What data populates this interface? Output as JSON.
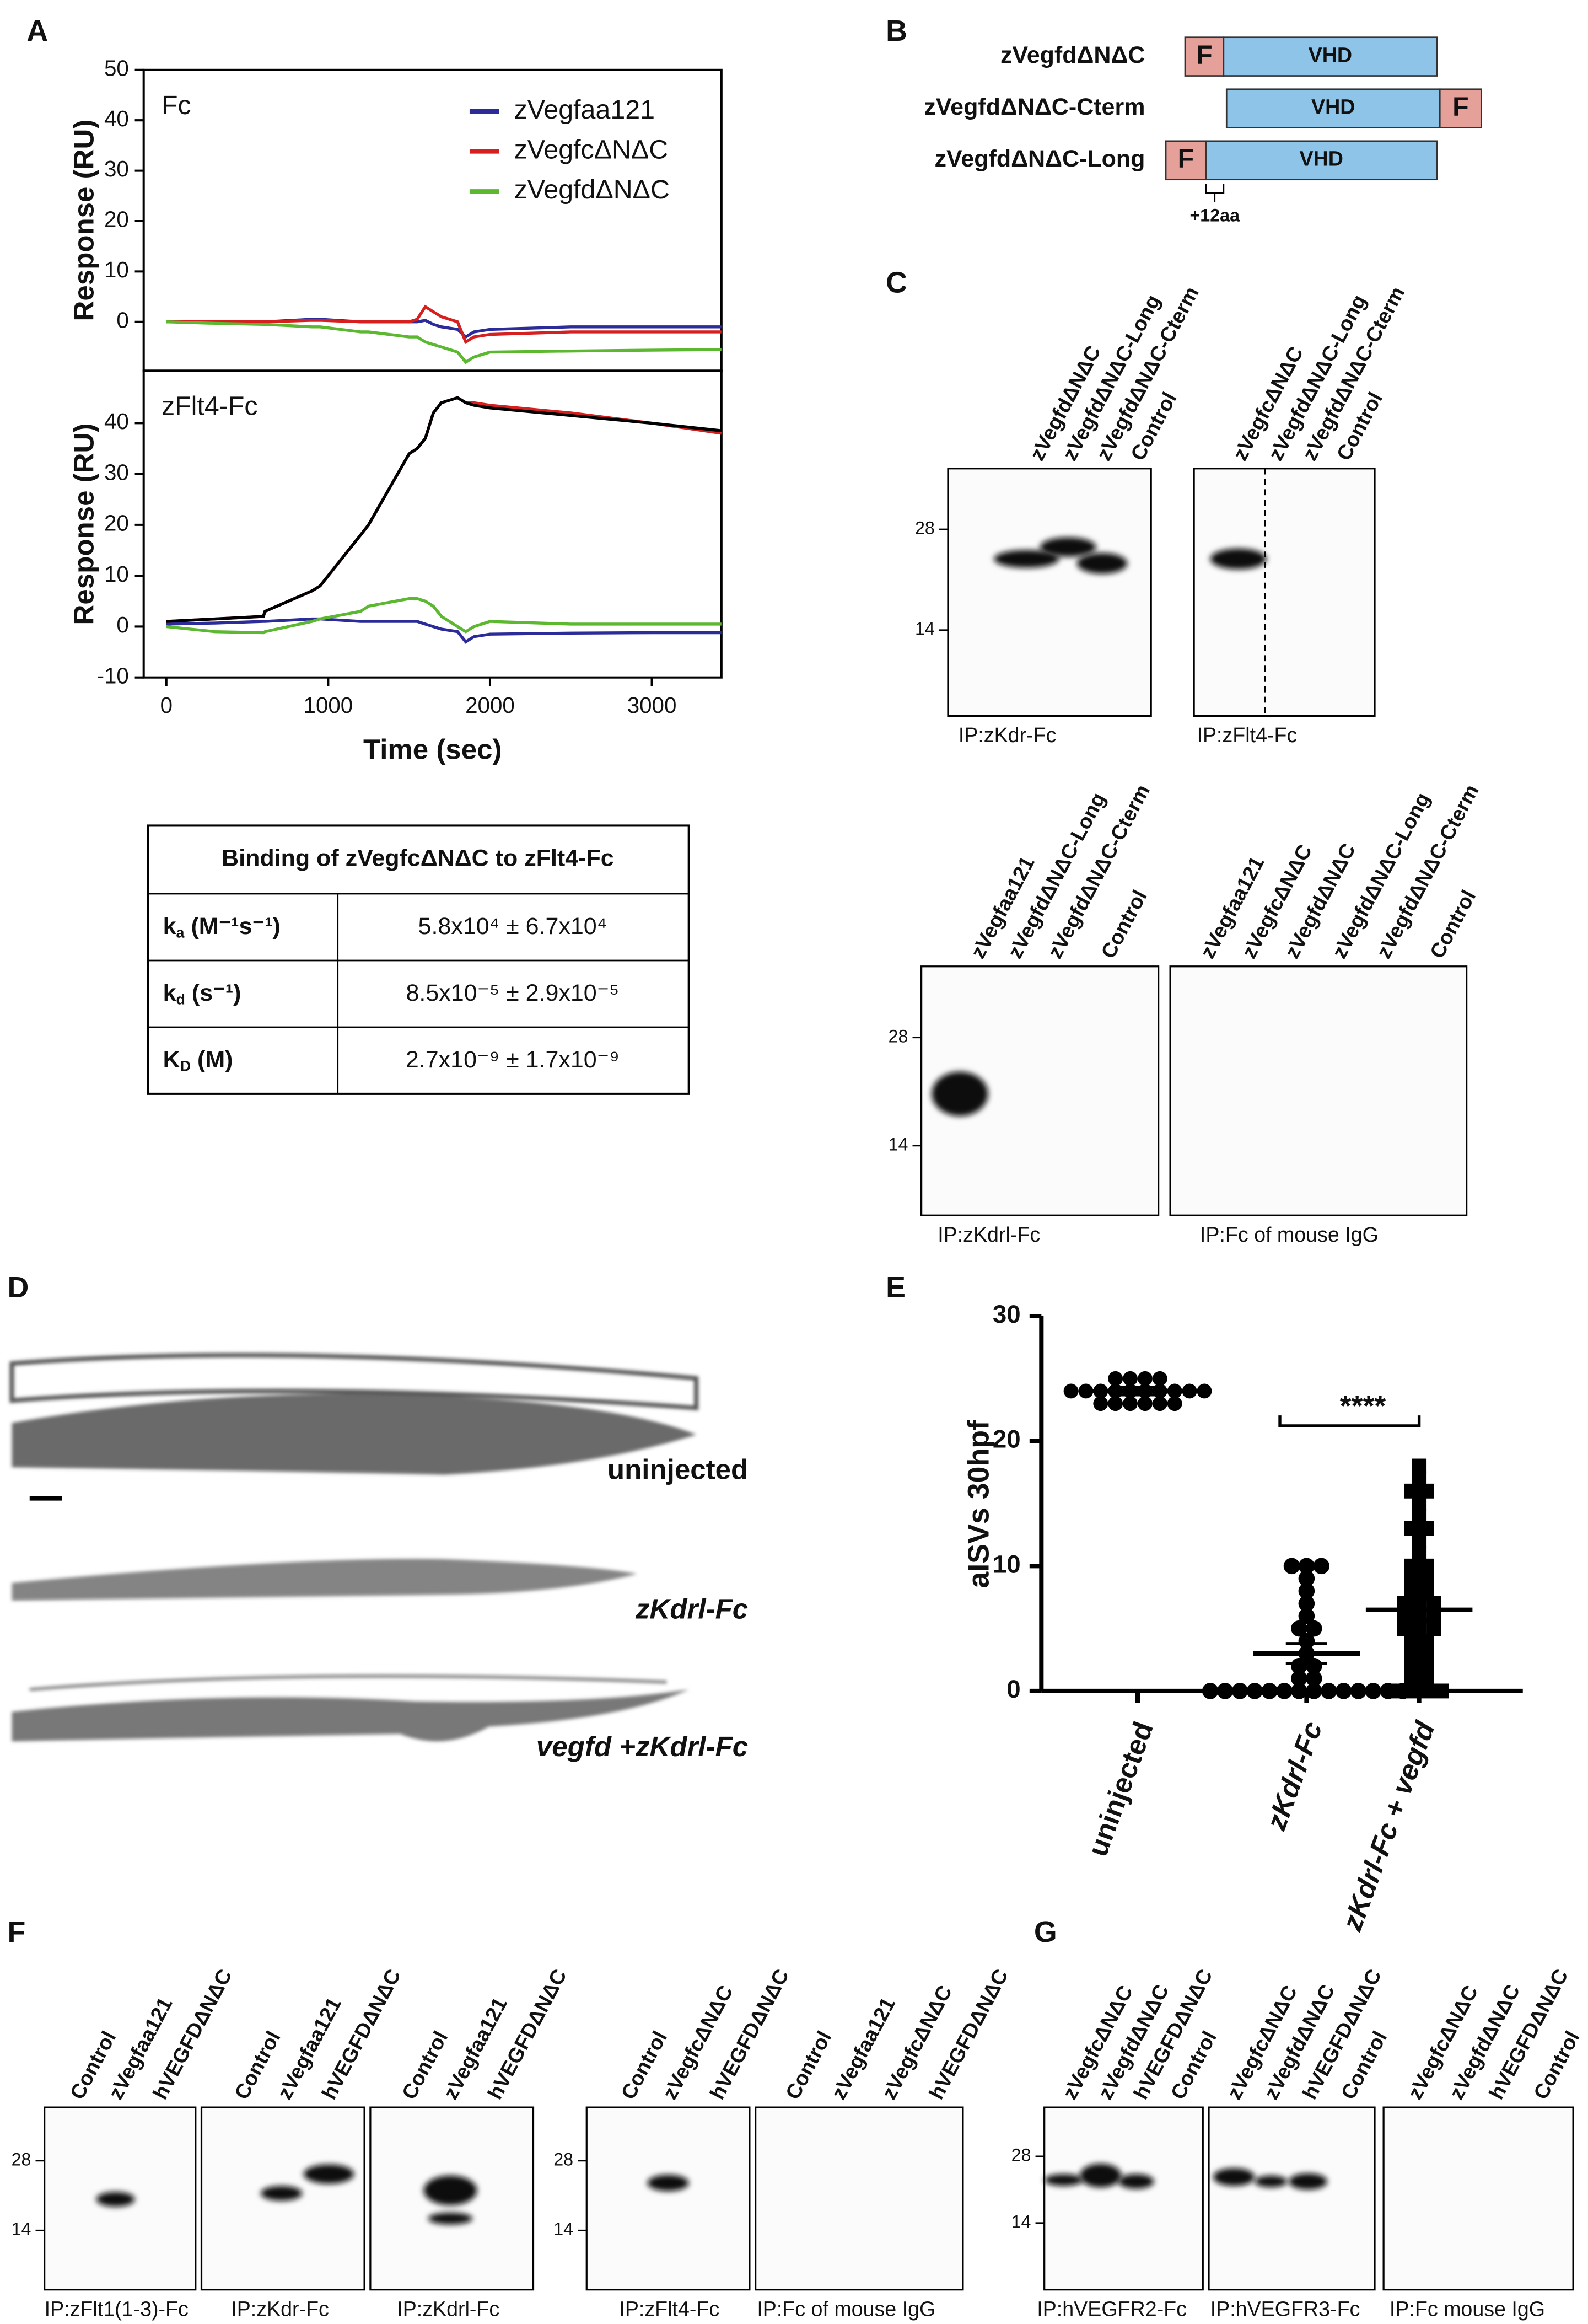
{
  "panel_labels": [
    "A",
    "B",
    "C",
    "D",
    "E",
    "F",
    "G"
  ],
  "chart_data": [
    {
      "type": "line",
      "annotation": "Fc",
      "ylabel": "Response (RU)",
      "legend": "upper right",
      "xlim": [
        -140,
        3430
      ],
      "ylim": [
        -9.7,
        50
      ],
      "yticks": [
        0,
        10,
        20,
        30,
        40,
        50
      ],
      "x": [
        0,
        300,
        600,
        610,
        900,
        950,
        1200,
        1250,
        1500,
        1550,
        1600,
        1650,
        1700,
        1800,
        1850,
        1900,
        2000,
        2500,
        3000,
        3430
      ],
      "series": [
        {
          "name": "zVegfaa121",
          "color": "#2b2b9a",
          "values": [
            0,
            0,
            0,
            0,
            0.5,
            0.5,
            0,
            0,
            0,
            0,
            0.3,
            -0.5,
            -1,
            -1.5,
            -3,
            -2,
            -1.5,
            -1,
            -1,
            -1
          ]
        },
        {
          "name": "zVegfcΔNΔC",
          "color": "#d62020",
          "values": [
            0,
            0,
            0,
            0,
            0.3,
            0.3,
            0,
            0,
            0,
            0.5,
            3,
            2,
            1,
            0,
            -4,
            -3,
            -2.5,
            -2,
            -2,
            -2
          ]
        },
        {
          "name": "zVegfdΔNΔC",
          "color": "#5cb830",
          "values": [
            0,
            -0.3,
            -0.5,
            -0.5,
            -1,
            -1,
            -2,
            -2,
            -3,
            -3,
            -4,
            -4.5,
            -5,
            -6,
            -8,
            -7,
            -6,
            -5.8,
            -5.6,
            -5.5
          ]
        }
      ]
    },
    {
      "type": "line",
      "annotation": "zFlt4-Fc",
      "ylabel": "Response (RU)",
      "xlabel": "Time (sec)",
      "xlim": [
        -140,
        3430
      ],
      "ylim": [
        -10,
        50.3
      ],
      "yticks": [
        -10,
        0,
        10,
        20,
        30,
        40
      ],
      "xticks": [
        0,
        1000,
        2000,
        3000
      ],
      "x": [
        0,
        300,
        600,
        610,
        900,
        950,
        1200,
        1250,
        1500,
        1550,
        1600,
        1650,
        1700,
        1800,
        1850,
        1900,
        2000,
        2500,
        3000,
        3430
      ],
      "series": [
        {
          "color": "#2b2b9a",
          "values": [
            0.5,
            0.7,
            1,
            1,
            1.5,
            1.5,
            1,
            1,
            1,
            1,
            0.5,
            0,
            -0.5,
            -1,
            -3,
            -2,
            -1.5,
            -1.3,
            -1.2,
            -1.2
          ]
        },
        {
          "color": "#d62020",
          "values": [
            1,
            1.5,
            2,
            3,
            7,
            8,
            18,
            20,
            34,
            35,
            37,
            42,
            44,
            45,
            44,
            44,
            43.5,
            42,
            40,
            38
          ]
        },
        {
          "color": "#5cb830",
          "values": [
            0,
            -1,
            -1.2,
            -1,
            1,
            1.5,
            3,
            4,
            5.5,
            5.5,
            5,
            4,
            2,
            0,
            -1,
            0,
            1,
            0.5,
            0.5,
            0.5
          ]
        },
        {
          "color": "#000000",
          "values": [
            1,
            1.5,
            2,
            3,
            7,
            8,
            18,
            20,
            34,
            35,
            37,
            42,
            44,
            45,
            44,
            43.5,
            43,
            41.5,
            40,
            38.5
          ]
        }
      ]
    },
    {
      "type": "dot",
      "ylabel": "aISVs 30hpf",
      "annotation": "****",
      "ylim": [
        0,
        30
      ],
      "yticks": [
        0,
        10,
        20,
        30
      ],
      "categories": [
        "uninjected",
        "zKdrl-Fc",
        "zKdrl-Fc + vegfd"
      ],
      "points": [
        [
          23,
          23,
          23,
          24,
          24,
          24,
          24,
          24,
          24,
          25,
          25,
          25,
          23,
          24,
          24,
          23,
          24,
          25,
          24,
          23
        ],
        [
          0,
          0,
          0,
          0,
          0,
          0,
          0,
          0,
          0,
          0,
          0,
          0,
          0,
          0,
          1,
          1,
          2,
          2,
          3,
          4,
          5,
          5,
          6,
          7,
          8,
          9,
          10,
          10,
          10
        ],
        [
          0,
          0,
          0,
          0,
          1,
          1,
          2,
          2,
          3,
          3,
          4,
          4,
          5,
          5,
          5,
          6,
          6,
          6,
          7,
          7,
          7,
          8,
          8,
          9,
          9,
          10,
          10,
          11,
          12,
          13,
          14,
          15,
          16,
          17,
          18,
          16,
          13
        ]
      ],
      "means": [
        24,
        3,
        6.5
      ],
      "sem": [
        0.3,
        0.8,
        0.8
      ]
    }
  ],
  "table": {
    "title": "Binding of zVegfcΔNΔC to zFlt4-Fc",
    "rows": [
      {
        "symbol": "k",
        "sub": "a",
        "unit": " (M⁻¹s⁻¹)",
        "value": "5.8x10⁴ ± 6.7x10⁴"
      },
      {
        "symbol": "k",
        "sub": "d",
        "unit": " (s⁻¹)",
        "value": "8.5x10⁻⁵ ± 2.9x10⁻⁵"
      },
      {
        "symbol": "K",
        "sub": "D",
        "unit": " (M)",
        "value": "2.7x10⁻⁹ ± 1.7x10⁻⁹"
      }
    ]
  },
  "constructs": [
    {
      "name": "zVegfdΔNΔC",
      "domains": [
        "F",
        "VHD"
      ]
    },
    {
      "name": "zVegfdΔNΔC-Cterm",
      "domains": [
        "VHD",
        "F"
      ]
    },
    {
      "name": "zVegfdΔNΔC-Long",
      "domains": [
        "F",
        "VHD"
      ]
    }
  ],
  "insert_label": "+12aa",
  "embryos": [
    "uninjected",
    "zKdrl-Fc",
    "vegfd +zKdrl-Fc"
  ],
  "blots": [
    {
      "lanes": [
        "zVegfdΔNΔC",
        "zVegfdΔNΔC-Long",
        "zVegfdΔNΔC-Cterm",
        "Control"
      ],
      "markers": [
        28,
        14
      ],
      "caption": "IP:zKdr-Fc"
    },
    {
      "lanes": [
        "zVegfcΔNΔC",
        "zVegfdΔNΔC-Long",
        "zVegfdΔNΔC-Cterm",
        "Control"
      ],
      "caption": "IP:zFlt4-Fc"
    },
    {
      "lanes": [
        "zVegfaa121",
        "zVegfdΔNΔC-Long",
        "zVegfdΔNΔC-Cterm",
        "Control"
      ],
      "markers": [
        28,
        14
      ],
      "caption": "IP:zKdrl-Fc"
    },
    {
      "lanes": [
        "zVegfaa121",
        "zVegfcΔNΔC",
        "zVegfdΔNΔC",
        "zVegfdΔNΔC-Long",
        "zVegfdΔNΔC-Cterm",
        "Control"
      ],
      "caption": "IP:Fc of mouse IgG"
    },
    {
      "lanes": [
        "Control",
        "zVegfaa121",
        "hVEGFDΔNΔC"
      ],
      "markers": [
        28,
        14
      ],
      "caption": "IP:zFlt1(1-3)-Fc"
    },
    {
      "lanes": [
        "Control",
        "zVegfaa121",
        "hVEGFDΔNΔC"
      ],
      "caption": "IP:zKdr-Fc"
    },
    {
      "lanes": [
        "Control",
        "zVegfaa121",
        "hVEGFDΔNΔC"
      ],
      "caption": "IP:zKdrl-Fc"
    },
    {
      "lanes": [
        "Control",
        "zVegfcΔNΔC",
        "hVEGFDΔNΔC"
      ],
      "markers": [
        28,
        14
      ],
      "caption": "IP:zFlt4-Fc"
    },
    {
      "lanes": [
        "Control",
        "zVegfaa121",
        "zVegfcΔNΔC",
        "hVEGFDΔNΔC"
      ],
      "caption": "IP:Fc of mouse IgG"
    },
    {
      "lanes": [
        "zVegfcΔNΔC",
        "zVegfdΔNΔC",
        "hVEGFDΔNΔC",
        "Control"
      ],
      "markers": [
        28,
        14
      ],
      "caption": "IP:hVEGFR2-Fc"
    },
    {
      "lanes": [
        "zVegfcΔNΔC",
        "zVegfdΔNΔC",
        "hVEGFDΔNΔC",
        "Control"
      ],
      "caption": "IP:hVEGFR3-Fc"
    },
    {
      "lanes": [
        "zVegfcΔNΔC",
        "zVegfdΔNΔC",
        "hVEGFDΔNΔC",
        "Control"
      ],
      "caption": "IP:Fc mouse IgG"
    }
  ]
}
